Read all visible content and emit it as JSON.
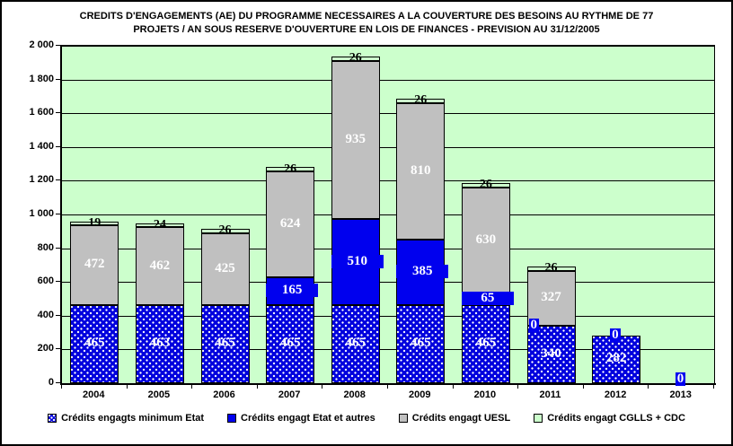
{
  "title": {
    "line1": "CREDITS D'ENGAGEMENTS (AE) DU PROGRAMME NECESSAIRES A LA COUVERTURE DES BESOINS AU RYTHME DE 77",
    "line2": "PROJETS / AN SOUS RESERVE D'OUVERTURE EN LOIS DE FINANCES - PREVISION AU 31/12/2005"
  },
  "colors": {
    "plot_background": "#ccffcc",
    "gridline": "#000000",
    "series_dotted_blue": "#0000dd",
    "series_solid_blue": "#0000ee",
    "series_gray": "#c0c0c0",
    "series_light_green": "#ccffcc",
    "label_white": "#ffffff",
    "label_black": "#000000"
  },
  "y_axis": {
    "min": 0,
    "max": 2000,
    "step": 200,
    "tick_labels": [
      "2 000",
      "1 800",
      "1 600",
      "1 400",
      "1 200",
      "1 000",
      "800",
      "600",
      "400",
      "200",
      "0"
    ]
  },
  "chart_data": {
    "type": "bar",
    "stacked": true,
    "title": "CREDITS D'ENGAGEMENTS (AE) DU PROGRAMME NECESSAIRES A LA COUVERTURE DES BESOINS AU RYTHME DE 77 PROJETS / AN SOUS RESERVE D'OUVERTURE EN LOIS DE FINANCES - PREVISION AU 31/12/2005",
    "xlabel": "",
    "ylabel": "",
    "ylim": [
      0,
      2000
    ],
    "grid": true,
    "legend_position": "bottom",
    "categories": [
      "2004",
      "2005",
      "2006",
      "2007",
      "2008",
      "2009",
      "2010",
      "2011",
      "2012",
      "2013"
    ],
    "series": [
      {
        "name": "Crédits engagts minimum Etat",
        "color": "#0000dd",
        "pattern": "dotted",
        "values": [
          465,
          463,
          465,
          465,
          465,
          465,
          465,
          340,
          282,
          0
        ]
      },
      {
        "name": "Crédits engagt Etat et autres",
        "color": "#0000ee",
        "pattern": "solid",
        "values": [
          0,
          0,
          0,
          165,
          510,
          385,
          65,
          0,
          0,
          0
        ]
      },
      {
        "name": "Crédits engagt UESL",
        "color": "#c0c0c0",
        "pattern": "solid",
        "values": [
          472,
          462,
          425,
          624,
          935,
          810,
          630,
          327,
          0,
          0
        ]
      },
      {
        "name": "Crédits engagt CGLLS + CDC",
        "color": "#ccffcc",
        "pattern": "solid",
        "values": [
          19,
          24,
          26,
          26,
          26,
          26,
          26,
          26,
          0,
          0
        ]
      }
    ],
    "visible_labels": [
      {
        "category": "2004",
        "series": 0,
        "text": "465"
      },
      {
        "category": "2004",
        "series": 2,
        "text": "472"
      },
      {
        "category": "2004",
        "series": 3,
        "text": "19"
      },
      {
        "category": "2005",
        "series": 0,
        "text": "463"
      },
      {
        "category": "2005",
        "series": 2,
        "text": "462"
      },
      {
        "category": "2005",
        "series": 3,
        "text": "24"
      },
      {
        "category": "2006",
        "series": 0,
        "text": "465"
      },
      {
        "category": "2006",
        "series": 2,
        "text": "425"
      },
      {
        "category": "2006",
        "series": 3,
        "text": "26"
      },
      {
        "category": "2007",
        "series": 0,
        "text": "465"
      },
      {
        "category": "2007",
        "series": 1,
        "text": "165"
      },
      {
        "category": "2007",
        "series": 2,
        "text": "624"
      },
      {
        "category": "2007",
        "series": 3,
        "text": "26"
      },
      {
        "category": "2008",
        "series": 0,
        "text": "465"
      },
      {
        "category": "2008",
        "series": 1,
        "text": "510"
      },
      {
        "category": "2008",
        "series": 2,
        "text": "935"
      },
      {
        "category": "2008",
        "series": 3,
        "text": "26"
      },
      {
        "category": "2009",
        "series": 0,
        "text": "465"
      },
      {
        "category": "2009",
        "series": 1,
        "text": "385"
      },
      {
        "category": "2009",
        "series": 2,
        "text": "810"
      },
      {
        "category": "2009",
        "series": 3,
        "text": "26"
      },
      {
        "category": "2010",
        "series": 0,
        "text": "465"
      },
      {
        "category": "2010",
        "series": 1,
        "text": "65"
      },
      {
        "category": "2010",
        "series": 2,
        "text": "630"
      },
      {
        "category": "2010",
        "series": 3,
        "text": "26"
      },
      {
        "category": "2011",
        "series": 0,
        "text": "340"
      },
      {
        "category": "2011",
        "series": 1,
        "text": "0",
        "align": "left"
      },
      {
        "category": "2011",
        "series": 2,
        "text": "327"
      },
      {
        "category": "2011",
        "series": 3,
        "text": "26"
      },
      {
        "category": "2012",
        "series": 0,
        "text": "282"
      },
      {
        "category": "2012",
        "series": 1,
        "text": "0"
      },
      {
        "category": "2013",
        "series": 1,
        "text": "0",
        "dy": -4
      }
    ]
  },
  "legend": {
    "items": [
      {
        "label": "Crédits engagts minimum Etat"
      },
      {
        "label": "Crédits engagt Etat et autres"
      },
      {
        "label": "Crédits engagt UESL"
      },
      {
        "label": "Crédits engagt CGLLS + CDC"
      }
    ]
  }
}
